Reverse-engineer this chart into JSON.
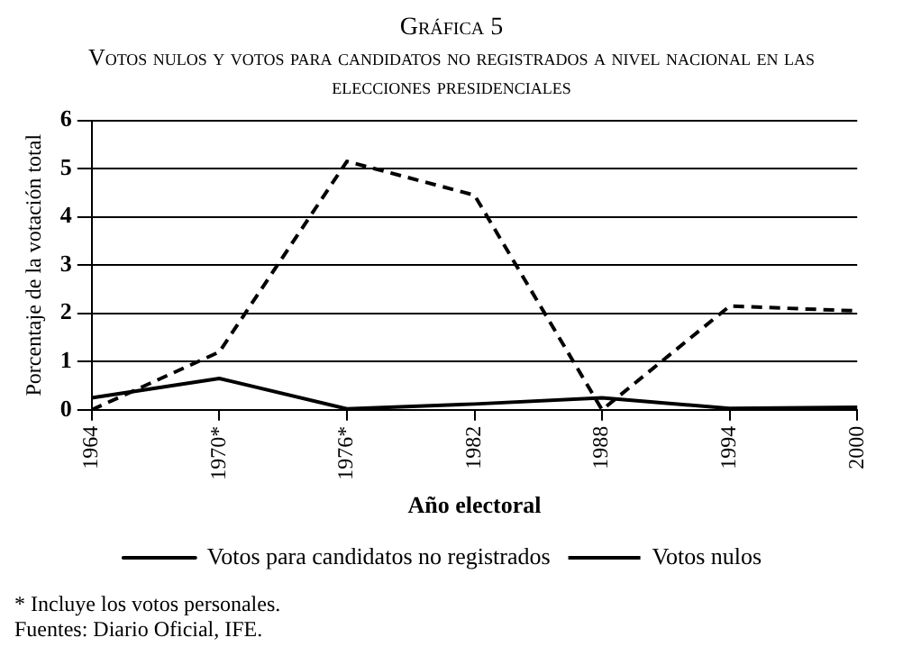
{
  "chart_data": {
    "type": "line",
    "title": "Gráfica 5",
    "subtitle": "Votos nulos y votos para candidatos no registrados a nivel nacional en las elecciones presidenciales",
    "categories": [
      "1964",
      "1970*",
      "1976*",
      "1982",
      "1988",
      "1994",
      "2000"
    ],
    "series": [
      {
        "name": "Votos para candidatos no registrados",
        "color": "#000000",
        "line_style": "solid",
        "values": [
          0.25,
          0.65,
          0.02,
          0.12,
          0.25,
          0.03,
          0.05
        ]
      },
      {
        "name": "Votos nulos",
        "color": "#000000",
        "line_style": "dashed",
        "values": [
          0,
          1.2,
          5.15,
          4.45,
          0,
          2.15,
          2.05
        ]
      }
    ],
    "xlabel": "Año electoral",
    "ylabel": "Porcentaje de la votación total",
    "ylim": [
      0,
      6
    ],
    "yticks": [
      0,
      1,
      2,
      3,
      4,
      5,
      6
    ],
    "grid": "y",
    "legend": "bottom",
    "marker": "none",
    "annotations": [
      "* Incluye los votos personales.",
      "Fuentes: Diario Oficial, IFE."
    ]
  }
}
